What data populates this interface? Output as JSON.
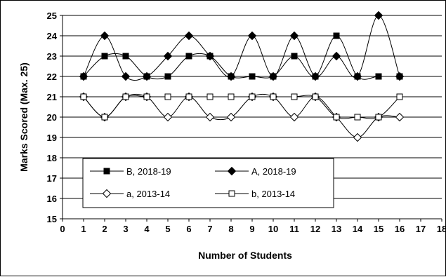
{
  "chart_data": {
    "type": "line",
    "title": "",
    "xlabel": "Number of Students",
    "ylabel": "Marks Scored (Max. 25)",
    "xlim": [
      0,
      18
    ],
    "ylim": [
      15,
      25
    ],
    "x_ticks": [
      "0",
      "1",
      "2",
      "3",
      "4",
      "5",
      "6",
      "7",
      "8",
      "9",
      "10",
      "11",
      "12",
      "13",
      "14",
      "15",
      "16",
      "17",
      "18"
    ],
    "y_ticks": [
      "15",
      "16",
      "17",
      "18",
      "19",
      "20",
      "21",
      "22",
      "23",
      "24",
      "25"
    ],
    "grid": "horizontal",
    "smooth": true,
    "legend_placement": "lower-left inside plot",
    "x": [
      1,
      2,
      3,
      4,
      5,
      6,
      7,
      8,
      9,
      10,
      11,
      12,
      13,
      14,
      15,
      16
    ],
    "series": [
      {
        "name": "B, 2018-19",
        "marker": "filled-square",
        "color": "#000000",
        "values": [
          22,
          23,
          23,
          22,
          22,
          23,
          23,
          22,
          22,
          22,
          23,
          22,
          24,
          22,
          22,
          22
        ]
      },
      {
        "name": "A, 2018-19",
        "marker": "filled-diamond",
        "color": "#000000",
        "values": [
          22,
          24,
          22,
          22,
          23,
          24,
          23,
          22,
          24,
          22,
          24,
          22,
          23,
          22,
          25,
          22
        ]
      },
      {
        "name": "a, 2013-14",
        "marker": "open-diamond",
        "color": "#000000",
        "values": [
          21,
          20,
          21,
          21,
          20,
          21,
          20,
          20,
          21,
          21,
          20,
          21,
          20,
          19,
          20,
          20
        ]
      },
      {
        "name": "b, 2013-14",
        "marker": "open-square",
        "color": "#000000",
        "values": [
          21,
          20,
          21,
          21,
          21,
          21,
          21,
          21,
          21,
          21,
          21,
          21,
          20,
          20,
          20,
          21
        ]
      }
    ]
  }
}
